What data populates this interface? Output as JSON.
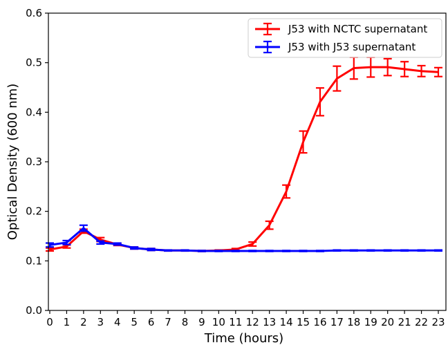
{
  "chart_data": {
    "type": "line",
    "xlabel": "Time (hours)",
    "ylabel": "Optical Density (600 nm)",
    "xlim": [
      0,
      23
    ],
    "ylim": [
      0.0,
      0.6
    ],
    "x_ticks": [
      "0",
      "1",
      "2",
      "3",
      "4",
      "5",
      "6",
      "7",
      "8",
      "9",
      "10",
      "11",
      "12",
      "13",
      "14",
      "15",
      "16",
      "17",
      "18",
      "19",
      "20",
      "21",
      "22",
      "23"
    ],
    "y_ticks": [
      "0.0",
      "0.1",
      "0.2",
      "0.3",
      "0.4",
      "0.5",
      "0.6"
    ],
    "grid": false,
    "legend_position": "top-right",
    "x": [
      0,
      1,
      2,
      3,
      4,
      5,
      6,
      7,
      8,
      9,
      10,
      11,
      12,
      13,
      14,
      15,
      16,
      17,
      18,
      19,
      20,
      21,
      22,
      23
    ],
    "series": [
      {
        "name": "J53 with NCTC supernatant",
        "color": "#ff0000",
        "values": [
          0.123,
          0.129,
          0.16,
          0.143,
          0.133,
          0.126,
          0.123,
          0.121,
          0.121,
          0.12,
          0.121,
          0.123,
          0.134,
          0.172,
          0.24,
          0.34,
          0.421,
          0.468,
          0.489,
          0.491,
          0.491,
          0.487,
          0.483,
          0.481
        ],
        "errors": [
          0.003,
          0.003,
          0.004,
          0.004,
          0.002,
          0.002,
          0.002,
          0.001,
          0.001,
          0.001,
          0.001,
          0.002,
          0.004,
          0.008,
          0.013,
          0.022,
          0.028,
          0.025,
          0.022,
          0.02,
          0.017,
          0.015,
          0.011,
          0.009
        ]
      },
      {
        "name": "J53 with J53 supernatant",
        "color": "#0000ff",
        "values": [
          0.132,
          0.137,
          0.166,
          0.137,
          0.134,
          0.126,
          0.123,
          0.121,
          0.121,
          0.12,
          0.12,
          0.12,
          0.12,
          0.12,
          0.12,
          0.12,
          0.12,
          0.121,
          0.121,
          0.121,
          0.121,
          0.121,
          0.121,
          0.121
        ],
        "errors": [
          0.004,
          0.004,
          0.006,
          0.003,
          0.002,
          0.002,
          0.002,
          0.001,
          0.001,
          0.001,
          0.001,
          0.001,
          0.001,
          0.001,
          0.001,
          0.001,
          0.001,
          0.001,
          0.001,
          0.001,
          0.001,
          0.001,
          0.001,
          0.001
        ]
      }
    ]
  }
}
